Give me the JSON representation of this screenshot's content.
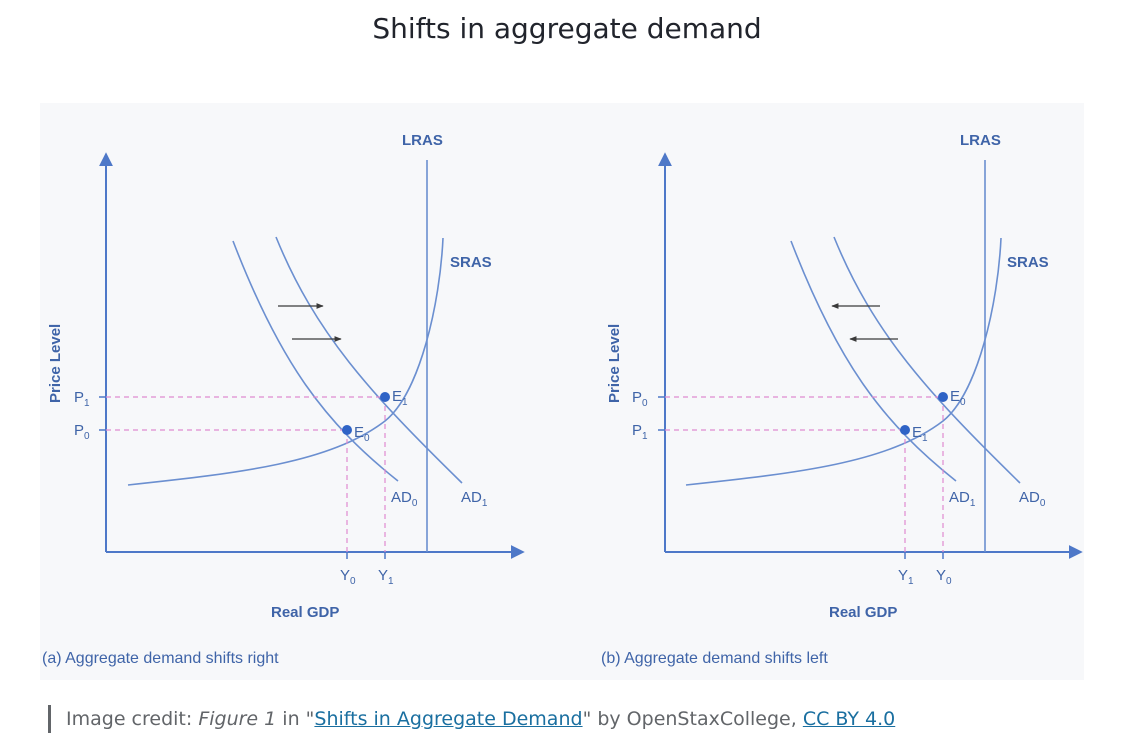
{
  "title": "Shifts in aggregate demand",
  "panels": [
    {
      "caption": "(a) Aggregate demand shifts right",
      "x_axis_label": "Real GDP",
      "y_axis_label": "Price Level",
      "lras_label": "LRAS",
      "sras_label": "SRAS",
      "price_upper": {
        "base": "P",
        "sub": "1"
      },
      "price_lower": {
        "base": "P",
        "sub": "0"
      },
      "output_left": {
        "base": "Y",
        "sub": "0"
      },
      "output_right": {
        "base": "Y",
        "sub": "1"
      },
      "eq_upper": {
        "base": "E",
        "sub": "1"
      },
      "eq_lower": {
        "base": "E",
        "sub": "0"
      },
      "ad_inner": {
        "base": "AD",
        "sub": "0"
      },
      "ad_outer": {
        "base": "AD",
        "sub": "1"
      },
      "shift_direction": "right"
    },
    {
      "caption": "(b) Aggregate demand shifts left",
      "x_axis_label": "Real GDP",
      "y_axis_label": "Price Level",
      "lras_label": "LRAS",
      "sras_label": "SRAS",
      "price_upper": {
        "base": "P",
        "sub": "0"
      },
      "price_lower": {
        "base": "P",
        "sub": "1"
      },
      "output_left": {
        "base": "Y",
        "sub": "1"
      },
      "output_right": {
        "base": "Y",
        "sub": "0"
      },
      "eq_upper": {
        "base": "E",
        "sub": "0"
      },
      "eq_lower": {
        "base": "E",
        "sub": "1"
      },
      "ad_inner": {
        "base": "AD",
        "sub": "1"
      },
      "ad_outer": {
        "base": "AD",
        "sub": "0"
      },
      "shift_direction": "left"
    }
  ],
  "credit": {
    "prefix": "Image credit: ",
    "figure_ref": "Figure 1",
    "in_text": " in \"",
    "link_title": "Shifts in Aggregate Demand",
    "by_text": "\" by OpenStaxCollege, ",
    "license": "CC BY 4.0"
  },
  "colors": {
    "curve": "#6b8fd0",
    "axis": "#4e78c8",
    "dashed": "#e08ad0",
    "point": "#2f63c6",
    "arrow": "#3a3a3a",
    "panel_bg": "#f7f8fa"
  }
}
